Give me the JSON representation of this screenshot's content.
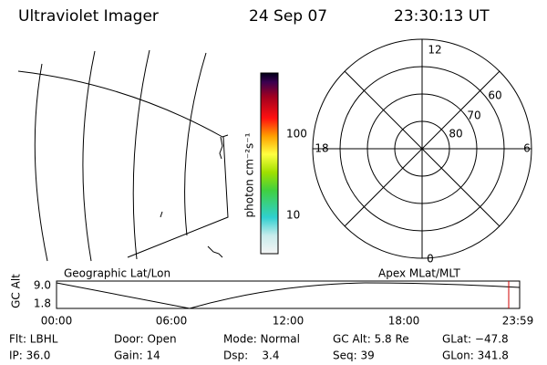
{
  "header": {
    "instrument": "Ultraviolet Imager",
    "date": "24 Sep 07",
    "time": "23:30:13 UT"
  },
  "colorbar": {
    "label": "photon cm⁻²s⁻¹",
    "ticks": [
      "100",
      "10"
    ]
  },
  "polar": {
    "mlt_labels": [
      "12",
      "18",
      "6",
      "0"
    ],
    "lat_labels": [
      "60",
      "70",
      "80"
    ]
  },
  "panel_labels": {
    "map": "Geographic Lat/Lon",
    "polar": "Apex MLat/MLT"
  },
  "altitude": {
    "axis_label": "GC Alt",
    "yticks": [
      "9.0",
      "1.8"
    ],
    "xticks": [
      "00:00",
      "06:00",
      "12:00",
      "18:00",
      "23:59"
    ]
  },
  "status": {
    "rows": [
      [
        "Flt: LBHL",
        "Door: Open",
        "Mode: Normal",
        "GC Alt: 5.8 Re",
        "GLat: −47.8"
      ],
      [
        "IP: 36.0",
        "Gain: 14",
        "Dsp:    3.4",
        "Seq: 39",
        "GLon: 341.8"
      ]
    ]
  }
}
